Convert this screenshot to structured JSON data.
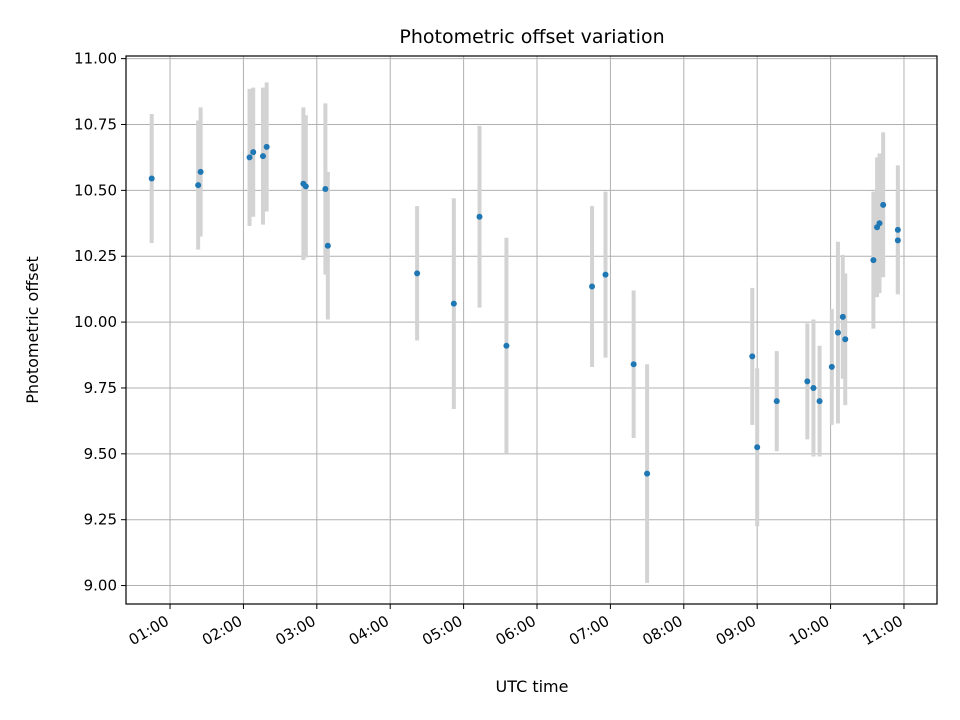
{
  "chart_data": {
    "type": "scatter",
    "title": "Photometric offset variation",
    "xlabel": "UTC time",
    "ylabel": "Photometric offset",
    "xlim": [
      "00:24",
      "11:27"
    ],
    "ylim": [
      8.93,
      11.01
    ],
    "x_ticks": [
      "01:00",
      "02:00",
      "03:00",
      "04:00",
      "05:00",
      "06:00",
      "07:00",
      "08:00",
      "09:00",
      "10:00",
      "11:00"
    ],
    "y_ticks": [
      9.0,
      9.25,
      9.5,
      9.75,
      10.0,
      10.25,
      10.5,
      10.75,
      11.0
    ],
    "grid": true,
    "point_color": "#1f77b4",
    "errorbar_color": "#d3d3d3",
    "points": [
      {
        "time": "00:45",
        "y": 10.545,
        "err": 0.245
      },
      {
        "time": "01:23",
        "y": 10.52,
        "err": 0.245
      },
      {
        "time": "01:25",
        "y": 10.57,
        "err": 0.245
      },
      {
        "time": "02:05",
        "y": 10.625,
        "err": 0.26
      },
      {
        "time": "02:08",
        "y": 10.645,
        "err": 0.245
      },
      {
        "time": "02:16",
        "y": 10.63,
        "err": 0.26
      },
      {
        "time": "02:19",
        "y": 10.665,
        "err": 0.245
      },
      {
        "time": "02:49",
        "y": 10.525,
        "err": 0.29
      },
      {
        "time": "02:51",
        "y": 10.515,
        "err": 0.27
      },
      {
        "time": "03:07",
        "y": 10.505,
        "err": 0.325
      },
      {
        "time": "03:09",
        "y": 10.29,
        "err": 0.28
      },
      {
        "time": "04:22",
        "y": 10.185,
        "err": 0.255
      },
      {
        "time": "04:52",
        "y": 10.07,
        "err": 0.4
      },
      {
        "time": "05:13",
        "y": 10.4,
        "err": 0.345
      },
      {
        "time": "05:35",
        "y": 9.91,
        "err": 0.41
      },
      {
        "time": "06:45",
        "y": 10.135,
        "err": 0.305
      },
      {
        "time": "06:56",
        "y": 10.18,
        "err": 0.315
      },
      {
        "time": "07:19",
        "y": 9.84,
        "err": 0.28
      },
      {
        "time": "07:30",
        "y": 9.425,
        "err": 0.415
      },
      {
        "time": "08:56",
        "y": 9.87,
        "err": 0.26
      },
      {
        "time": "09:00",
        "y": 9.525,
        "err": 0.3
      },
      {
        "time": "09:16",
        "y": 9.7,
        "err": 0.19
      },
      {
        "time": "09:41",
        "y": 9.775,
        "err": 0.22
      },
      {
        "time": "09:46",
        "y": 9.75,
        "err": 0.26
      },
      {
        "time": "09:51",
        "y": 9.7,
        "err": 0.21
      },
      {
        "time": "10:01",
        "y": 9.83,
        "err": 0.22
      },
      {
        "time": "10:06",
        "y": 9.96,
        "err": 0.345
      },
      {
        "time": "10:10",
        "y": 10.02,
        "err": 0.235
      },
      {
        "time": "10:12",
        "y": 9.935,
        "err": 0.25
      },
      {
        "time": "10:35",
        "y": 10.235,
        "err": 0.26
      },
      {
        "time": "10:38",
        "y": 10.36,
        "err": 0.265
      },
      {
        "time": "10:40",
        "y": 10.375,
        "err": 0.265
      },
      {
        "time": "10:43",
        "y": 10.445,
        "err": 0.275
      },
      {
        "time": "10:55",
        "y": 10.35,
        "err": 0.245
      },
      {
        "time": "10:55",
        "y": 10.31,
        "err": 0.2
      }
    ]
  }
}
